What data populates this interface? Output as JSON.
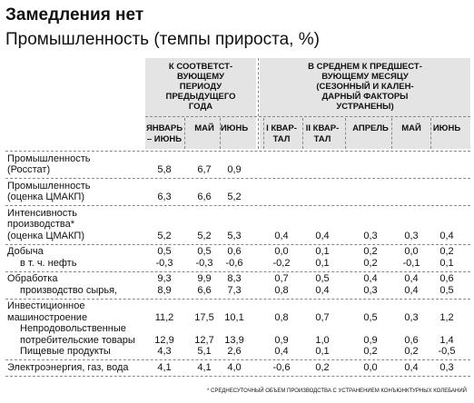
{
  "header": {
    "title": "Замедления нет",
    "subtitle": "Промышленность (темпы прироста, %)"
  },
  "table": {
    "column_groups": [
      {
        "lines": [
          "К СООТВЕТСТ-",
          "ВУЮЩЕМУ",
          "ПЕРИОДУ",
          "ПРЕДЫДУЩЕГО",
          "ГОДА"
        ]
      },
      {
        "lines": [
          "В СРЕДНЕМ К ПРЕДШЕСТ-",
          "ВУЮЩЕМУ МЕСЯЦУ",
          "(СЕЗОННЫЙ И КАЛЕН-",
          "ДАРНЫЙ ФАКТОРЫ",
          "УСТРАНЕНЫ)"
        ]
      }
    ],
    "columns": [
      [
        "ЯНВАРЬ",
        "– ИЮНЬ"
      ],
      [
        "МАЙ"
      ],
      [
        "ИЮНЬ"
      ],
      [
        "I КВАР-",
        "ТАЛ"
      ],
      [
        "II КВАР-",
        "ТАЛ"
      ],
      [
        "АПРЕЛЬ"
      ],
      [
        "МАЙ"
      ],
      [
        "ИЮНЬ"
      ]
    ],
    "groups": [
      {
        "lines": [
          {
            "label": [
              "Промышленность",
              "(Росстат)"
            ],
            "values": [
              "5,8",
              "6,7",
              "0,9"
            ]
          }
        ]
      },
      {
        "lines": [
          {
            "label": [
              "Промышленность",
              "(оценка ЦМАКП)"
            ],
            "values": [
              "6,3",
              "6,6",
              "5,2"
            ]
          }
        ]
      },
      {
        "lines": [
          {
            "label": [
              "Интенсивность",
              "производства*",
              "(оценка ЦМАКП)"
            ],
            "values": [
              "5,2",
              "5,2",
              "5,3",
              "0,4",
              "0,4",
              "0,3",
              "0,3",
              "0,4"
            ]
          }
        ]
      },
      {
        "lines": [
          {
            "label": [
              "Добыча"
            ],
            "values": [
              "0,5",
              "0,5",
              "0,6",
              "0,0",
              "0,1",
              "0,2",
              "0,0",
              "0,2"
            ]
          },
          {
            "label": [
              "в т. ч. нефть"
            ],
            "values": [
              "-0,3",
              "-0,3",
              "-0,6",
              "-0,2",
              "0,1",
              "0,2",
              "-0,1",
              "0,1"
            ]
          }
        ]
      },
      {
        "lines": [
          {
            "label": [
              "Обработка"
            ],
            "values": [
              "9,3",
              "9,9",
              "8,3",
              "0,7",
              "0,5",
              "0,4",
              "0,4",
              "0,6"
            ]
          },
          {
            "label": [
              "производство сырья,"
            ],
            "values": [
              "8,9",
              "6,6",
              "7,3",
              "0,8",
              "0,4",
              "0,3",
              "0,4",
              "0,5"
            ]
          }
        ]
      },
      {
        "lines": [
          {
            "label": [
              "Инвестиционное",
              "машиностроение"
            ],
            "values": [
              "11,2",
              "17,5",
              "10,1",
              "0,8",
              "0,7",
              "0,5",
              "0,3",
              "1,2"
            ]
          },
          {
            "label": [
              "Непродовольственные",
              "потребительские товары"
            ],
            "values": [
              "12,9",
              "12,7",
              "13,9",
              "0,9",
              "1,0",
              "0,9",
              "0,6",
              "1,4"
            ]
          },
          {
            "label": [
              "Пищевые продукты"
            ],
            "values": [
              "4,3",
              "5,1",
              "2,6",
              "0,4",
              "0,1",
              "0,2",
              "0,2",
              "-0,5"
            ]
          }
        ]
      },
      {
        "lines": [
          {
            "label": [
              "Электроэнергия, газ, вода"
            ],
            "values": [
              "4,1",
              "4,1",
              "4,0",
              "-0,6",
              "0,2",
              "0,0",
              "0,4",
              "0,3"
            ]
          }
        ]
      }
    ],
    "footnote": "* СРЕДНЕСУТОЧНЫЙ ОБЪЕМ ПРОИЗВОДСТВА С УСТРАНЕНИЕМ КОНЪЮНКТУРНЫХ КОЛЕБАНИЙ"
  }
}
